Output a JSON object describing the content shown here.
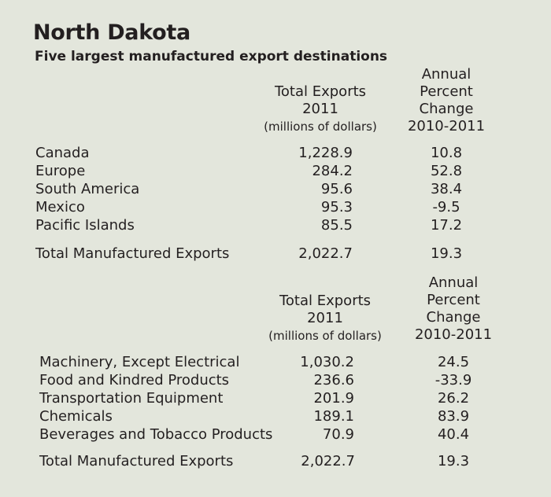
{
  "title": "North Dakota",
  "subtitle": "Five largest manufactured export destinations",
  "tables": [
    {
      "header": {
        "exports": [
          "Total Exports",
          "2011",
          "(millions of dollars)"
        ],
        "change": [
          "Annual",
          "Percent",
          "Change",
          "2010-2011"
        ]
      },
      "rows": [
        {
          "label": "Canada",
          "exports": "1,228.9",
          "change": "10.8"
        },
        {
          "label": "Europe",
          "exports": "284.2",
          "change": "52.8"
        },
        {
          "label": "South America",
          "exports": "95.6",
          "change": "38.4"
        },
        {
          "label": "Mexico",
          "exports": "95.3",
          "change": "-9.5"
        },
        {
          "label": "Pacific Islands",
          "exports": "85.5",
          "change": "17.2"
        }
      ],
      "total": {
        "label": "Total Manufactured Exports",
        "exports": "2,022.7",
        "change": "19.3"
      }
    },
    {
      "header": {
        "exports": [
          "Total Exports",
          "2011",
          "(millions of dollars)"
        ],
        "change": [
          "Annual",
          "Percent",
          "Change",
          "2010-2011"
        ]
      },
      "rows": [
        {
          "label": "Machinery, Except Electrical",
          "exports": "1,030.2",
          "change": "24.5"
        },
        {
          "label": "Food and Kindred Products",
          "exports": "236.6",
          "change": "-33.9"
        },
        {
          "label": "Transportation Equipment",
          "exports": "201.9",
          "change": "26.2"
        },
        {
          "label": "Chemicals",
          "exports": "189.1",
          "change": "83.9"
        },
        {
          "label": "Beverages and Tobacco Products",
          "exports": "70.9",
          "change": "40.4"
        }
      ],
      "total": {
        "label": "Total Manufactured Exports",
        "exports": "2,022.7",
        "change": "19.3"
      }
    }
  ]
}
